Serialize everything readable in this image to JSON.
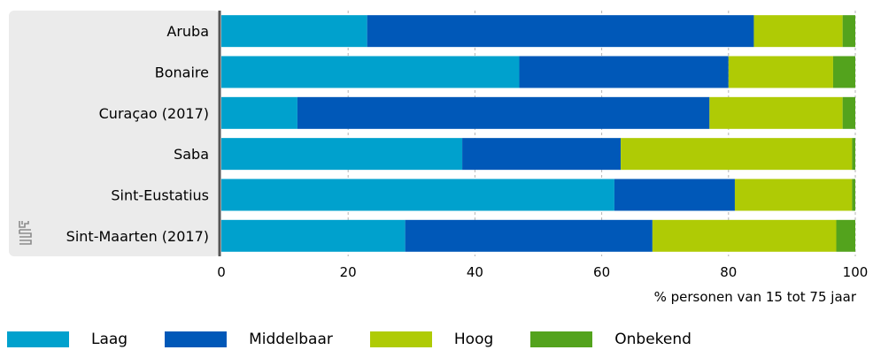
{
  "chart_data": {
    "type": "bar",
    "orientation": "horizontal",
    "stacked": true,
    "categories": [
      "Aruba",
      "Bonaire",
      "Curaçao (2017)",
      "Saba",
      "Sint-Eustatius",
      "Sint-Maarten (2017)"
    ],
    "series": [
      {
        "name": "Laag",
        "color": "#00a1cd",
        "values": [
          23,
          47,
          12,
          38,
          62,
          29
        ]
      },
      {
        "name": "Middelbaar",
        "color": "#0058b8",
        "values": [
          61,
          33,
          65,
          25,
          19,
          39
        ]
      },
      {
        "name": "Hoog",
        "color": "#afcb05",
        "values": [
          14,
          16.5,
          21,
          36.5,
          18.5,
          29
        ]
      },
      {
        "name": "Onbekend",
        "color": "#53a31d",
        "values": [
          2,
          3.5,
          2,
          0.5,
          0.5,
          3
        ]
      }
    ],
    "xlim": [
      0,
      100
    ],
    "xticks": [
      0,
      20,
      40,
      60,
      80,
      100
    ],
    "xlabel": "% personen van 15 tot 75 jaar",
    "grid": "vertical dashed",
    "legend_position": "bottom"
  },
  "logo_icon": "cbs-logo-icon"
}
